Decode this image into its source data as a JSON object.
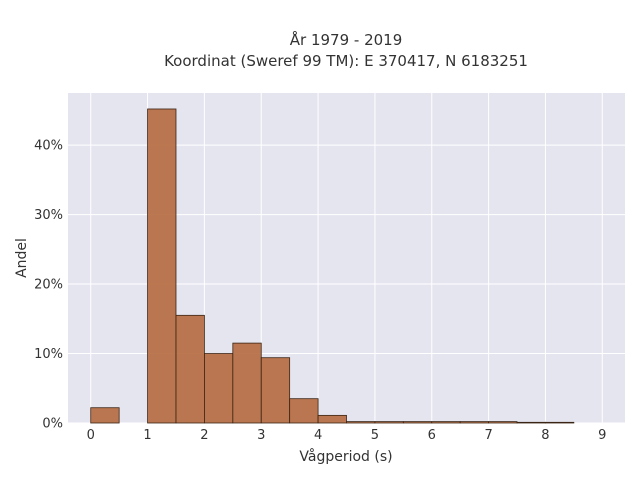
{
  "chart_data": {
    "type": "bar",
    "title_line1": "År 1979 - 2019",
    "title_line2": "Koordinat (Sweref 99 TM): E 370417, N 6183251",
    "xlabel": "Vågperiod (s)",
    "ylabel": "Andel",
    "xlim": [
      -0.4,
      9.4
    ],
    "ylim": [
      0,
      0.475
    ],
    "x_ticks": [
      0,
      1,
      2,
      3,
      4,
      5,
      6,
      7,
      8,
      9
    ],
    "y_ticks": [
      0,
      0.1,
      0.2,
      0.3,
      0.4
    ],
    "y_tick_labels": [
      "0%",
      "10%",
      "20%",
      "30%",
      "40%"
    ],
    "bin_width": 0.5,
    "bins": [
      {
        "start": 0.0,
        "value": 0.022
      },
      {
        "start": 1.0,
        "value": 0.452
      },
      {
        "start": 1.5,
        "value": 0.155
      },
      {
        "start": 2.0,
        "value": 0.1
      },
      {
        "start": 2.5,
        "value": 0.115
      },
      {
        "start": 3.0,
        "value": 0.094
      },
      {
        "start": 3.5,
        "value": 0.035
      },
      {
        "start": 4.0,
        "value": 0.011
      },
      {
        "start": 4.5,
        "value": 0.002
      },
      {
        "start": 5.0,
        "value": 0.002
      },
      {
        "start": 5.5,
        "value": 0.002
      },
      {
        "start": 6.0,
        "value": 0.002
      },
      {
        "start": 6.5,
        "value": 0.002
      },
      {
        "start": 7.0,
        "value": 0.002
      },
      {
        "start": 7.5,
        "value": 0.001
      },
      {
        "start": 8.0,
        "value": 0.001
      }
    ],
    "grid": true,
    "colors": {
      "bar": "#b5693e",
      "plot_background": "#e5e5f0"
    }
  }
}
